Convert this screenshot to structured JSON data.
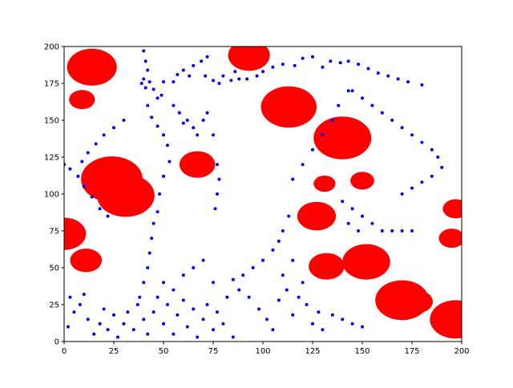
{
  "chart_data": {
    "type": "scatter",
    "xlim": [
      0,
      200
    ],
    "ylim": [
      0,
      200
    ],
    "xticks": [
      0,
      25,
      50,
      75,
      100,
      125,
      150,
      175,
      200
    ],
    "yticks": [
      0,
      25,
      50,
      75,
      100,
      125,
      150,
      175,
      200
    ],
    "series": [
      {
        "color": "#ff0000",
        "x": [
          14,
          9,
          93,
          113,
          140,
          67,
          24,
          31,
          131,
          150,
          127,
          0,
          197,
          195,
          11,
          132,
          152,
          170,
          178,
          197
        ],
        "y": [
          186,
          164,
          194,
          159,
          138,
          120,
          110,
          99,
          107,
          109,
          85,
          73,
          90,
          70,
          55,
          51,
          54,
          28,
          27,
          15
        ],
        "r": [
          12.5,
          6.5,
          10.5,
          14,
          14.5,
          9,
          15.5,
          14.5,
          5.5,
          6,
          9.7,
          11,
          6.5,
          6.5,
          8,
          9,
          12,
          13.5,
          7.5,
          13
        ]
      },
      {
        "color": "#0000ff",
        "x": [
          40,
          41,
          42,
          40,
          39,
          41,
          43,
          45,
          50,
          55,
          57,
          60,
          63,
          65,
          69,
          72,
          71,
          75,
          78,
          80,
          84,
          86,
          88,
          92,
          97,
          100,
          105,
          110,
          116,
          120,
          125,
          130,
          134,
          139,
          143,
          148,
          153,
          158,
          163,
          168,
          173,
          180,
          49,
          47,
          42,
          44,
          47,
          50,
          52,
          53,
          50,
          48,
          47,
          45,
          44,
          43,
          42,
          40,
          38,
          30,
          25,
          20,
          16,
          12,
          9,
          0,
          3,
          7,
          10,
          14,
          18,
          22,
          145,
          150,
          155,
          160,
          165,
          170,
          175,
          180,
          185,
          188,
          190,
          185,
          180,
          175,
          170,
          135,
          138,
          143,
          130,
          125,
          120,
          115,
          113,
          110,
          108,
          105,
          100,
          95,
          90,
          85,
          62,
          65,
          67,
          70,
          72,
          75,
          77,
          78,
          77,
          76,
          55,
          58,
          60,
          140,
          145,
          150,
          155,
          160,
          165,
          170,
          175,
          143,
          148,
          2,
          5,
          3,
          8,
          10,
          12,
          15,
          18,
          20,
          22,
          25,
          27,
          30,
          32,
          35,
          37,
          40,
          42,
          45,
          47,
          50,
          52,
          55,
          57,
          60,
          62,
          65,
          67,
          70,
          72,
          75,
          77,
          80,
          82,
          85,
          60,
          65,
          70,
          75,
          55,
          50,
          88,
          93,
          98,
          102,
          105,
          108,
          112,
          118,
          122,
          128,
          135,
          140,
          145,
          150,
          125,
          130,
          115,
          110,
          115,
          120
        ],
        "y": [
          197,
          190,
          184,
          178,
          175,
          172,
          176,
          171,
          176,
          176,
          181,
          184,
          180,
          187,
          190,
          193,
          180,
          177,
          175,
          180,
          177,
          183,
          178,
          178,
          180,
          183,
          186,
          188,
          187,
          192,
          193,
          186,
          190,
          189,
          190,
          188,
          185,
          182,
          180,
          178,
          176,
          174,
          167,
          165,
          160,
          152,
          146,
          140,
          133,
          122,
          112,
          100,
          88,
          80,
          70,
          60,
          50,
          40,
          30,
          150,
          145,
          140,
          134,
          128,
          122,
          120,
          117,
          112,
          105,
          98,
          90,
          85,
          170,
          165,
          160,
          155,
          150,
          145,
          140,
          135,
          130,
          125,
          118,
          112,
          108,
          104,
          100,
          150,
          160,
          170,
          140,
          130,
          120,
          110,
          85,
          75,
          68,
          62,
          55,
          50,
          45,
          42,
          150,
          145,
          140,
          150,
          155,
          140,
          120,
          110,
          100,
          90,
          160,
          155,
          148,
          95,
          90,
          85,
          80,
          75,
          75,
          75,
          75,
          80,
          75,
          10,
          20,
          30,
          25,
          32,
          15,
          5,
          12,
          22,
          8,
          18,
          3,
          12,
          20,
          8,
          25,
          15,
          5,
          20,
          30,
          12,
          25,
          5,
          18,
          28,
          10,
          22,
          3,
          15,
          25,
          8,
          20,
          12,
          30,
          3,
          45,
          50,
          55,
          40,
          35,
          40,
          35,
          30,
          22,
          15,
          8,
          28,
          35,
          30,
          25,
          20,
          18,
          15,
          12,
          10,
          12,
          8,
          18,
          45,
          55,
          40
        ]
      }
    ]
  }
}
